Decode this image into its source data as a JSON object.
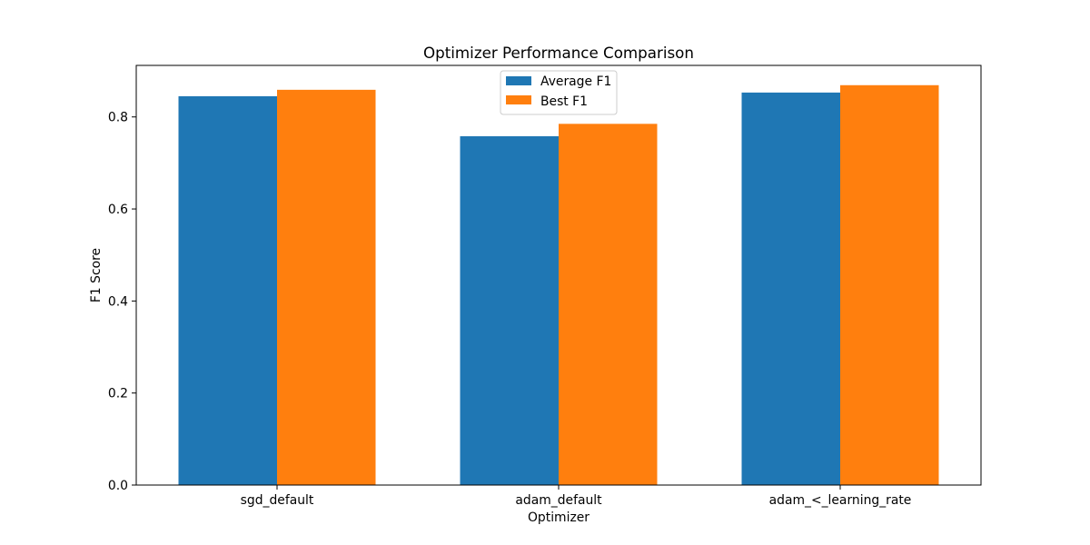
{
  "chart_data": {
    "type": "bar",
    "title": "Optimizer Performance Comparison",
    "xlabel": "Optimizer",
    "ylabel": "F1 Score",
    "categories": [
      "sgd_default",
      "adam_default",
      "adam_<_learning_rate"
    ],
    "series": [
      {
        "name": "Average F1",
        "values": [
          0.845,
          0.758,
          0.853
        ],
        "color": "#1f77b4"
      },
      {
        "name": "Best F1",
        "values": [
          0.859,
          0.785,
          0.869
        ],
        "color": "#ff7f0e"
      }
    ],
    "ylim": [
      0,
      0.912
    ],
    "yticks": [
      "0.0",
      "0.2",
      "0.4",
      "0.6",
      "0.8"
    ],
    "grid": false,
    "legend_position": "upper center"
  }
}
